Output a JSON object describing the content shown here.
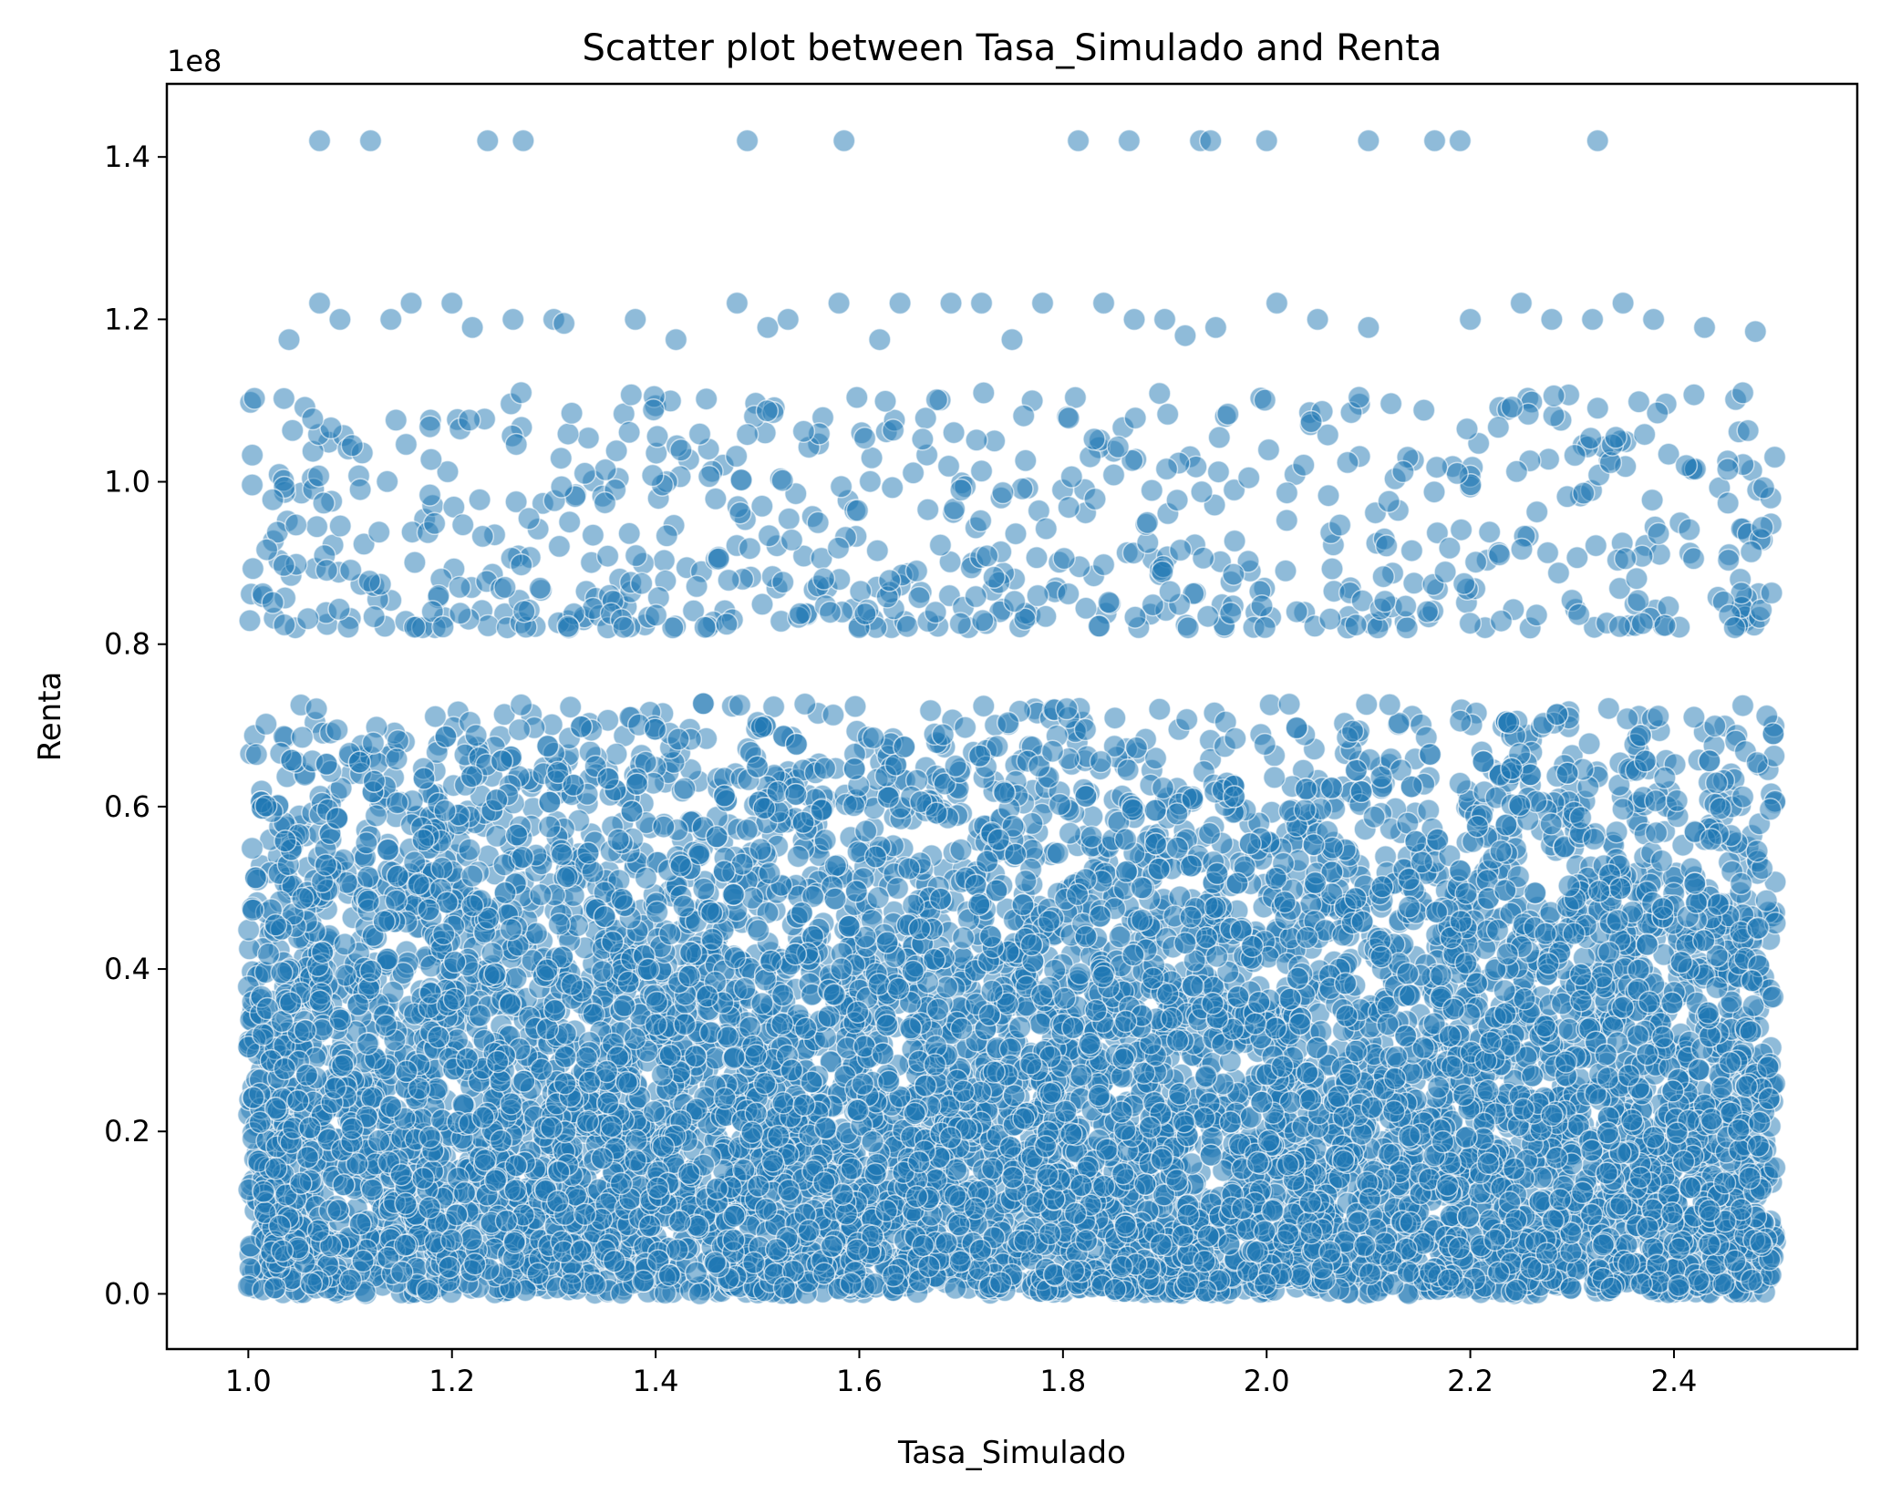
{
  "chart_data": {
    "type": "scatter",
    "title": "Scatter plot between Tasa_Simulado and Renta",
    "xlabel": "Tasa_Simulado",
    "ylabel": "Renta",
    "y_offset_label": "1e8",
    "xlim": [
      0.92,
      2.58
    ],
    "ylim": [
      -0.068,
      1.49
    ],
    "y_scale_factor": 100000000,
    "x_ticks": [
      "1.0",
      "1.2",
      "1.4",
      "1.6",
      "1.8",
      "2.0",
      "2.2",
      "2.4"
    ],
    "y_ticks": [
      "0.0",
      "0.2",
      "0.4",
      "0.6",
      "0.8",
      "1.0",
      "1.2",
      "1.4"
    ],
    "grid": false,
    "marker_color": "#1f77b4",
    "marker_alpha": 0.5,
    "marker_edge_color": "#ffffff",
    "series": [
      {
        "x_range": [
          1.0,
          2.5
        ],
        "dense_y_range": [
          0.0,
          0.83
        ],
        "outlier_points": [
          [
            1.07,
            1.42
          ],
          [
            1.12,
            1.42
          ],
          [
            1.235,
            1.42
          ],
          [
            1.27,
            1.42
          ],
          [
            1.49,
            1.42
          ],
          [
            1.585,
            1.42
          ],
          [
            1.815,
            1.42
          ],
          [
            1.865,
            1.42
          ],
          [
            1.935,
            1.42
          ],
          [
            1.945,
            1.42
          ],
          [
            2.0,
            1.42
          ],
          [
            2.1,
            1.42
          ],
          [
            2.165,
            1.42
          ],
          [
            2.19,
            1.42
          ],
          [
            2.325,
            1.42
          ],
          [
            1.04,
            1.175
          ],
          [
            1.07,
            1.22
          ],
          [
            1.09,
            1.2
          ],
          [
            1.14,
            1.2
          ],
          [
            1.16,
            1.22
          ],
          [
            1.2,
            1.22
          ],
          [
            1.22,
            1.19
          ],
          [
            1.26,
            1.2
          ],
          [
            1.3,
            1.2
          ],
          [
            1.31,
            1.195
          ],
          [
            1.38,
            1.2
          ],
          [
            1.42,
            1.175
          ],
          [
            1.48,
            1.22
          ],
          [
            1.51,
            1.19
          ],
          [
            1.53,
            1.2
          ],
          [
            1.58,
            1.22
          ],
          [
            1.62,
            1.175
          ],
          [
            1.64,
            1.22
          ],
          [
            1.69,
            1.22
          ],
          [
            1.72,
            1.22
          ],
          [
            1.75,
            1.175
          ],
          [
            1.78,
            1.22
          ],
          [
            1.84,
            1.22
          ],
          [
            1.87,
            1.2
          ],
          [
            1.9,
            1.2
          ],
          [
            1.92,
            1.18
          ],
          [
            1.95,
            1.19
          ],
          [
            2.01,
            1.22
          ],
          [
            2.05,
            1.2
          ],
          [
            2.1,
            1.19
          ],
          [
            2.2,
            1.2
          ],
          [
            2.25,
            1.22
          ],
          [
            2.28,
            1.2
          ],
          [
            2.32,
            1.2
          ],
          [
            2.35,
            1.22
          ],
          [
            2.38,
            1.2
          ],
          [
            2.43,
            1.19
          ],
          [
            2.48,
            1.185
          ]
        ]
      }
    ]
  }
}
